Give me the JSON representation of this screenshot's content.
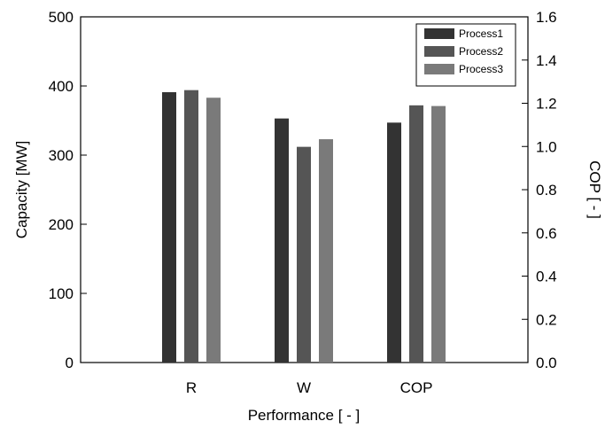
{
  "chart_data": {
    "type": "bar",
    "categories": [
      "R",
      "W",
      "COP"
    ],
    "series": [
      {
        "name": "Process1",
        "color": "#333333",
        "values": [
          391,
          353,
          347
        ]
      },
      {
        "name": "Process2",
        "color": "#555555",
        "values": [
          394,
          312,
          372
        ]
      },
      {
        "name": "Process3",
        "color": "#7a7a7a",
        "values": [
          383,
          323,
          371
        ]
      }
    ],
    "xlabel": "Performance [ - ]",
    "ylabel": "Capacity [MW]",
    "y2label": "COP [ - ]",
    "ylim": [
      0,
      500
    ],
    "y2lim": [
      0.0,
      1.6
    ],
    "yticks": [
      "0",
      "100",
      "200",
      "300",
      "400",
      "500"
    ],
    "y2ticks": [
      "0.0",
      "0.2",
      "0.4",
      "0.6",
      "0.8",
      "1.0",
      "1.2",
      "1.4",
      "1.6"
    ],
    "grid": false,
    "legend_position": "top-right"
  }
}
